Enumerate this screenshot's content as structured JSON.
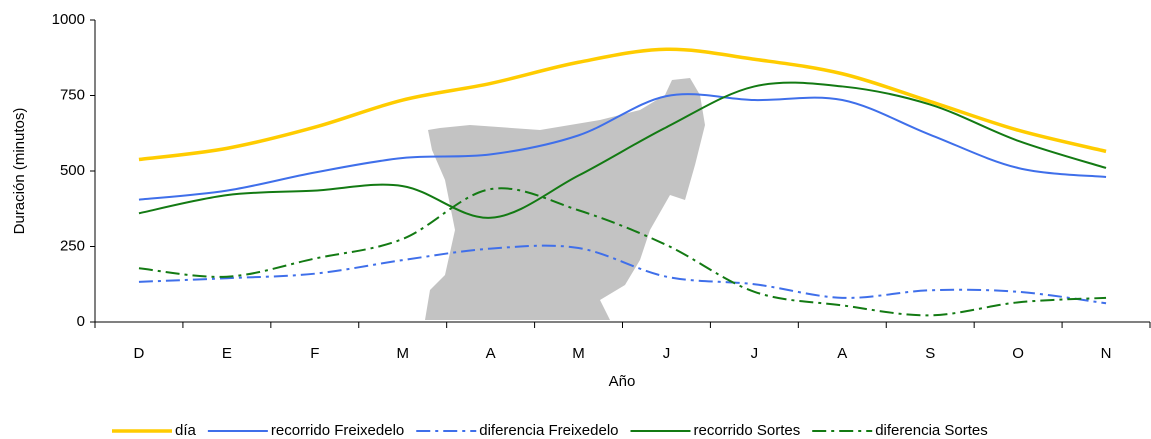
{
  "chart_data": {
    "type": "line",
    "x_label": "Año",
    "y_label": "Duración (minutos)",
    "categories": [
      "D",
      "E",
      "F",
      "M",
      "A",
      "M",
      "J",
      "J",
      "A",
      "S",
      "O",
      "N"
    ],
    "ylim": [
      0,
      1000
    ],
    "yticks": [
      0,
      250,
      500,
      750,
      1000
    ],
    "grid": false,
    "legend": "bottom",
    "series": [
      {
        "name": "día",
        "color": "#ffcc00",
        "style": "solid",
        "values": [
          538,
          575,
          645,
          735,
          790,
          860,
          903,
          870,
          822,
          730,
          635,
          565
        ]
      },
      {
        "name": "recorrido Freixedelo",
        "color": "#3f6fea",
        "style": "solid",
        "values": [
          405,
          435,
          495,
          543,
          555,
          618,
          748,
          735,
          735,
          620,
          510,
          480
        ]
      },
      {
        "name": "diferencia Freixedelo",
        "color": "#3f6fea",
        "style": "dashdot",
        "values": [
          133,
          145,
          160,
          205,
          243,
          245,
          150,
          125,
          80,
          105,
          100,
          62
        ]
      },
      {
        "name": "recorrido Sortes",
        "color": "#137a13",
        "style": "solid",
        "values": [
          360,
          420,
          435,
          450,
          345,
          485,
          645,
          780,
          780,
          720,
          600,
          510
        ]
      },
      {
        "name": "diferencia Sortes",
        "color": "#137a13",
        "style": "dashdot",
        "values": [
          178,
          150,
          210,
          275,
          440,
          370,
          255,
          100,
          55,
          22,
          65,
          80
        ]
      }
    ]
  }
}
